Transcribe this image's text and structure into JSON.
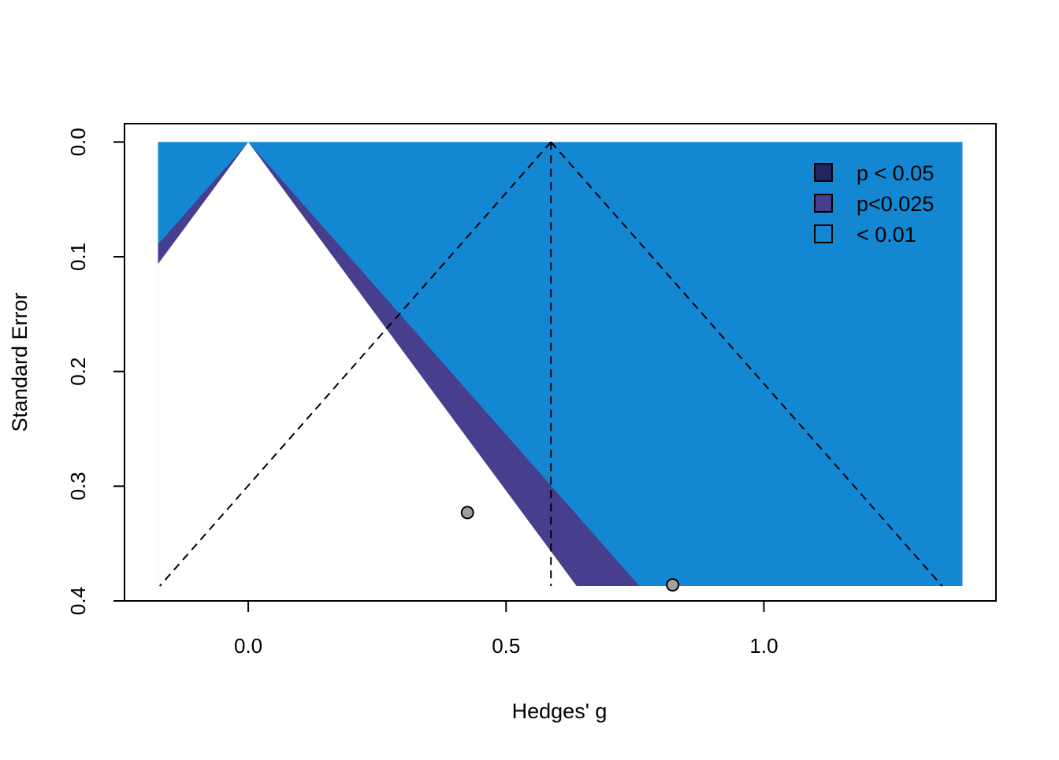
{
  "chart_data": {
    "type": "scatter",
    "subtype": "contour-enhanced funnel plot",
    "title": "",
    "xlabel": "Hedges' g",
    "ylabel": "Standard Error",
    "xlim": [
      -0.24,
      1.45
    ],
    "ylim": [
      0.4,
      -0.016
    ],
    "y_axis_reversed": true,
    "x_ticks": [
      0.0,
      0.5,
      1.0
    ],
    "x_tick_labels": [
      "0.0",
      "0.5",
      "1.0"
    ],
    "y_ticks": [
      0.0,
      0.1,
      0.2,
      0.3,
      0.4
    ],
    "y_tick_labels": [
      "0.0",
      "0.1",
      "0.2",
      "0.3",
      "0.4"
    ],
    "grid": false,
    "legend_position": "top-right",
    "plot_x_range": [
      -0.175,
      1.385
    ],
    "max_se": 0.387,
    "reference_line_at": 0.0,
    "summary_estimate": 0.587,
    "regions": [
      {
        "label": "p < 0.05",
        "z": 1.645,
        "color": "#21265F"
      },
      {
        "label": "p<0.025",
        "z": 1.96,
        "color": "#483E8E"
      },
      {
        "label": "< 0.01",
        "z": 2.326,
        "color": "#1487D2"
      }
    ],
    "points": [
      {
        "x": 0.425,
        "se": 0.323
      },
      {
        "x": 0.823,
        "se": 0.386
      }
    ],
    "point_color": "#a0a0a0"
  }
}
